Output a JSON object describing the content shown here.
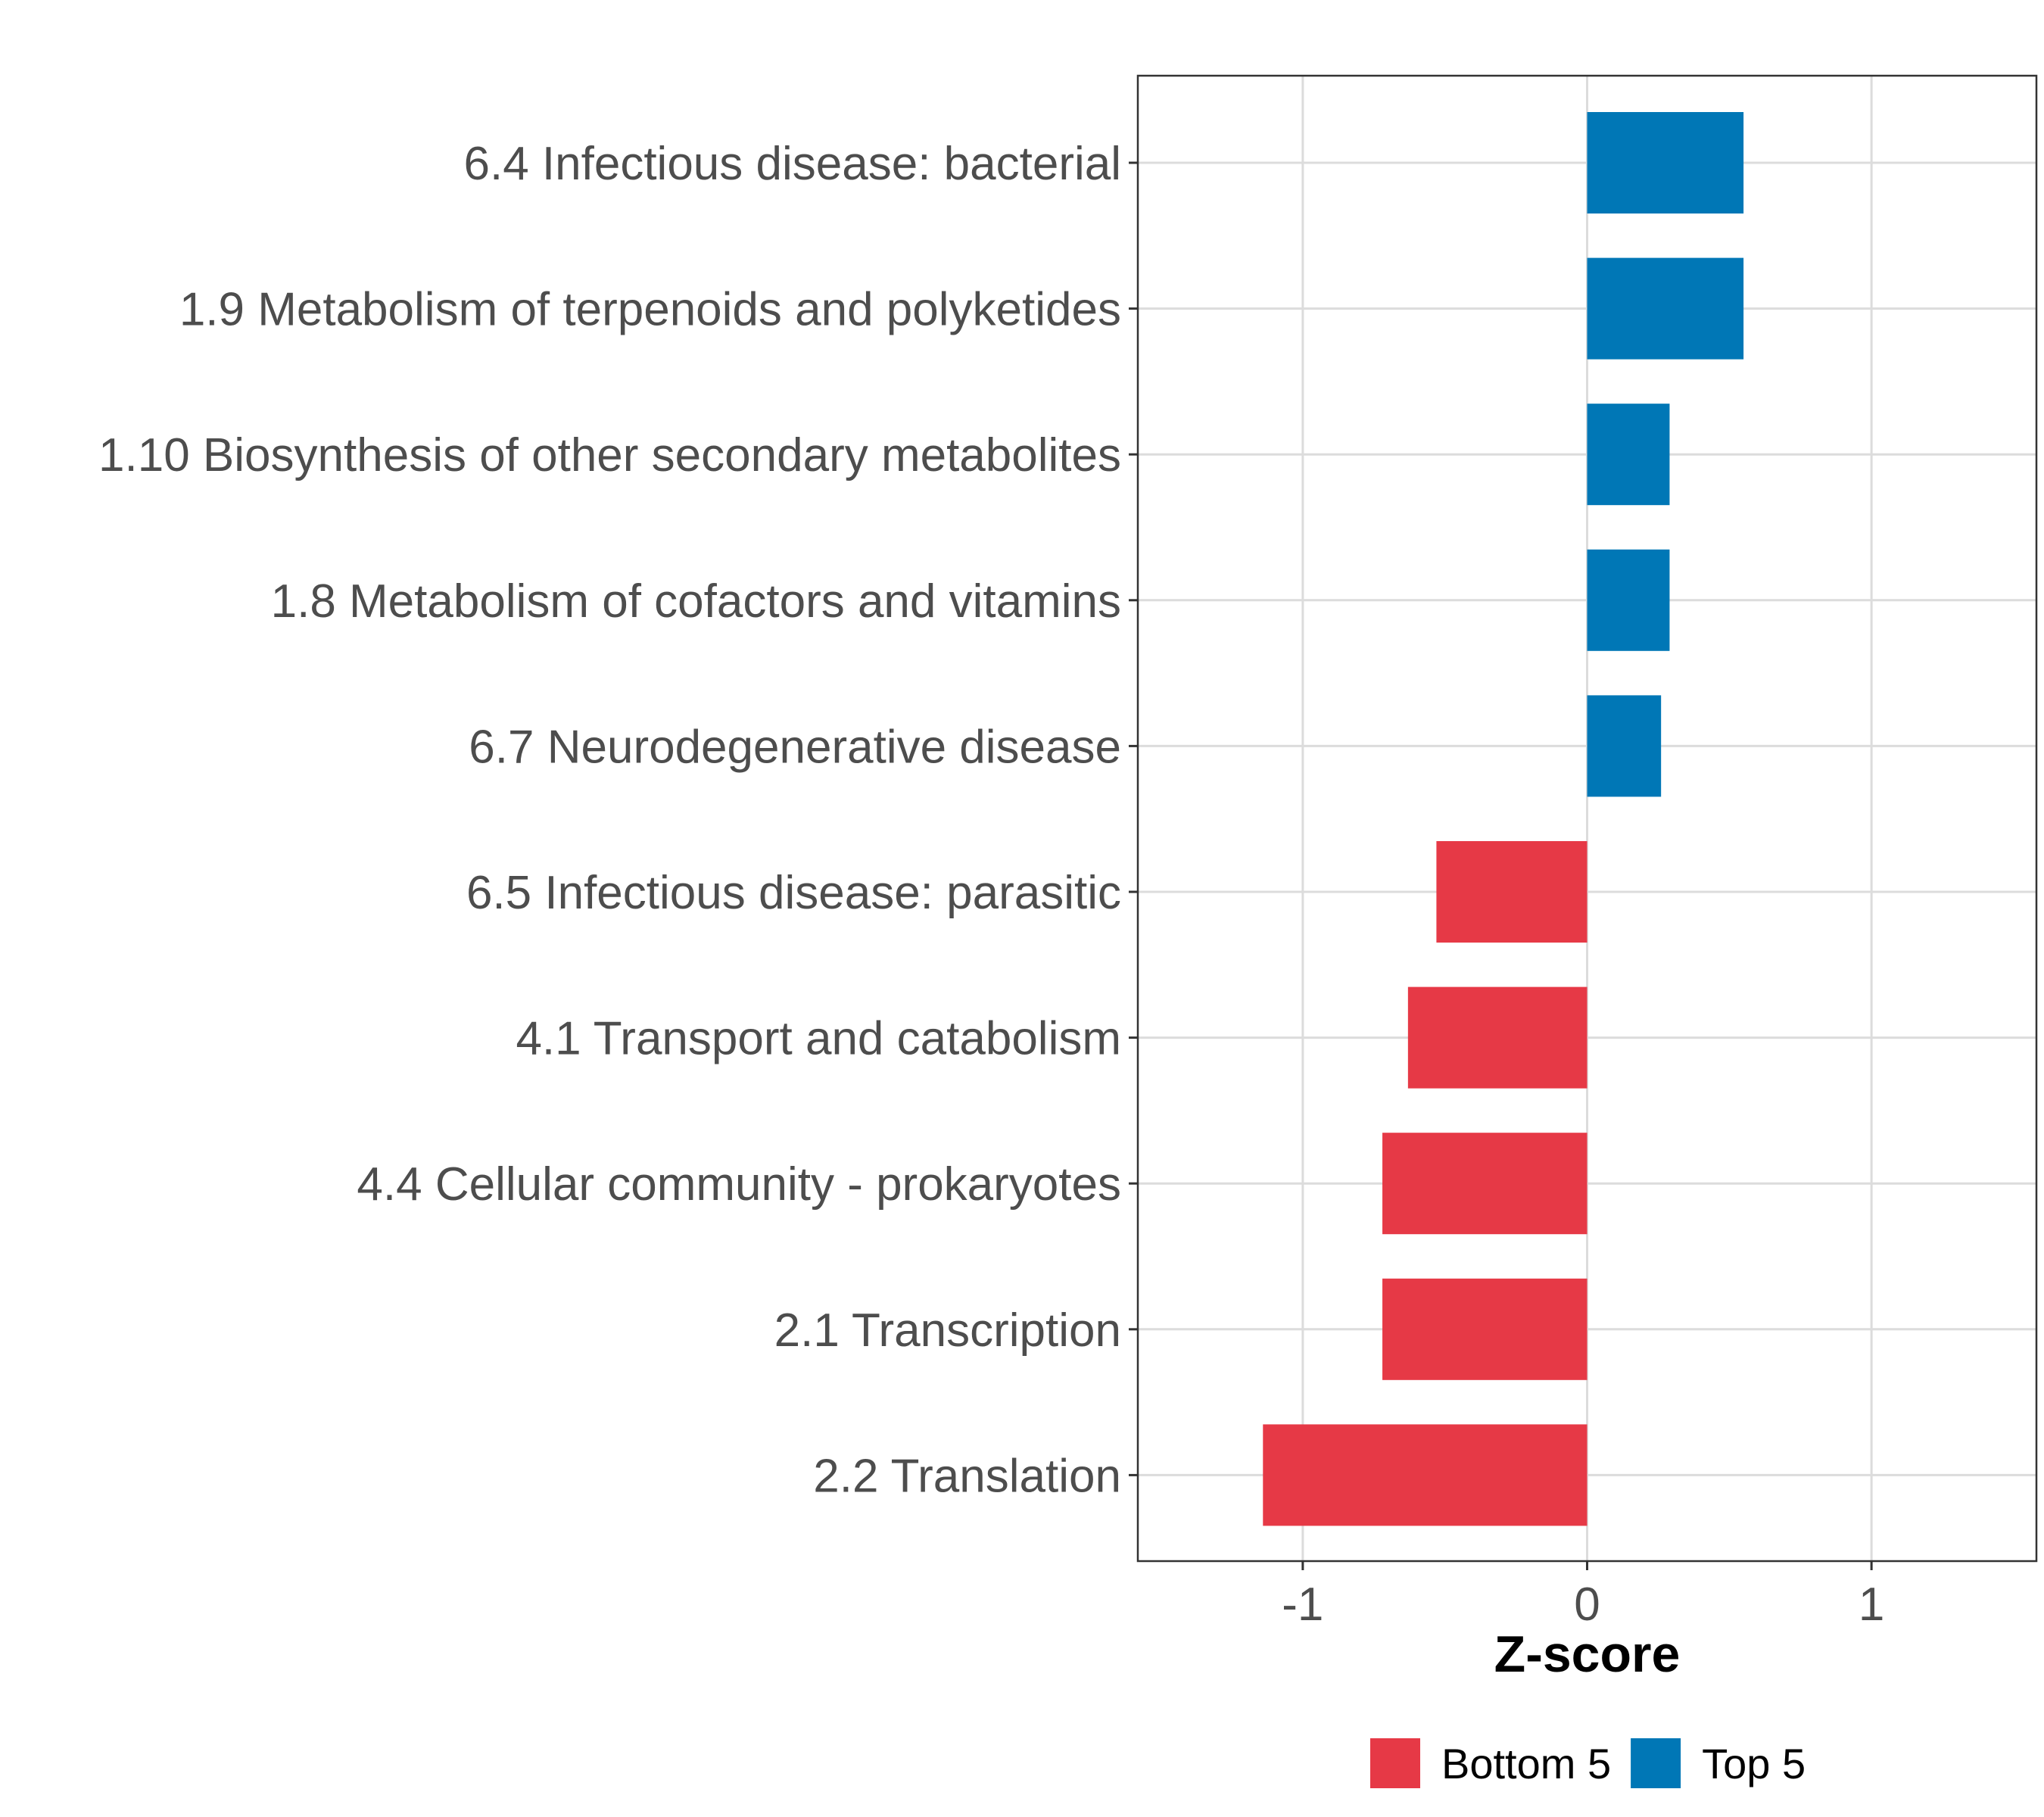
{
  "chart_data": {
    "type": "bar",
    "orientation": "horizontal",
    "title": "",
    "xlabel": "Z-score",
    "ylabel": "",
    "xlim": [
      -1.58,
      1.58
    ],
    "xticks": [
      {
        "value": -1,
        "label": "-1"
      },
      {
        "value": 0,
        "label": "0"
      },
      {
        "value": 1,
        "label": "1"
      }
    ],
    "grid": true,
    "categories": [
      "6.4 Infectious disease: bacterial",
      "1.9 Metabolism of terpenoids and polyketides",
      "1.10 Biosynthesis of other secondary metabolites",
      "1.8 Metabolism of cofactors and vitamins",
      "6.7 Neurodegenerative disease",
      "6.5 Infectious disease: parasitic",
      "4.1 Transport and catabolism",
      "4.4 Cellular community - prokaryotes",
      "2.1 Transcription",
      "2.2 Translation"
    ],
    "values": [
      0.55,
      0.55,
      0.29,
      0.29,
      0.26,
      -0.53,
      -0.63,
      -0.72,
      -0.72,
      -1.14
    ],
    "groups": [
      "Top 5",
      "Top 5",
      "Top 5",
      "Top 5",
      "Top 5",
      "Bottom 5",
      "Bottom 5",
      "Bottom 5",
      "Bottom 5",
      "Bottom 5"
    ],
    "legend": [
      {
        "name": "Bottom 5",
        "color": "#e63946"
      },
      {
        "name": "Top 5",
        "color": "#0077b6"
      }
    ],
    "legend_position": "bottom"
  }
}
